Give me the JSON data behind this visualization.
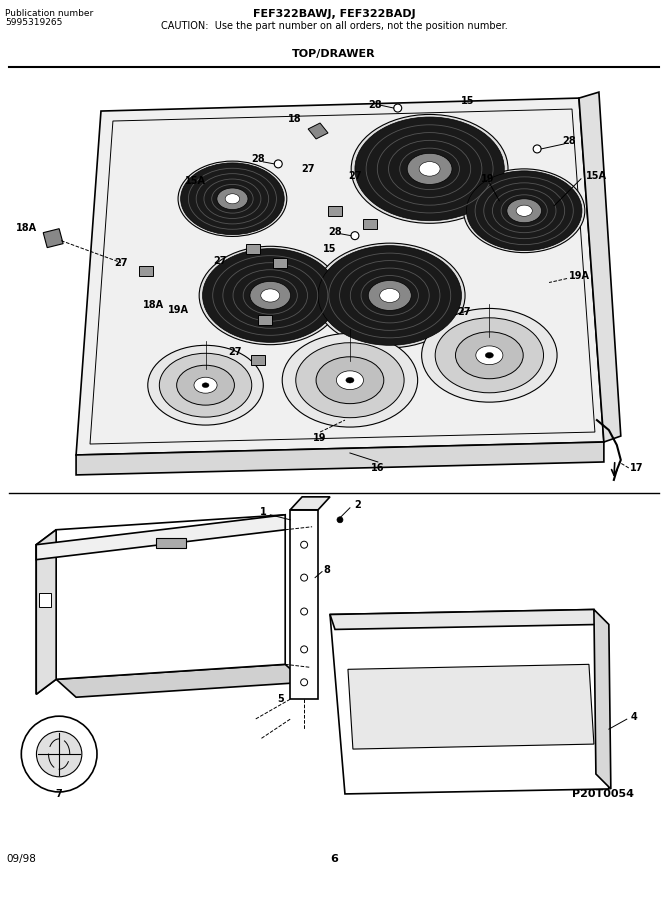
{
  "title_line1": "FEF322BAWJ, FEF322BADJ",
  "title_line2": "CAUTION:  Use the part number on all orders, not the position number.",
  "pub_label": "Publication number",
  "pub_number": "5995319265",
  "section_label": "TOP/DRAWER",
  "bottom_left": "09/98",
  "bottom_center": "6",
  "bottom_right": "P20T0054",
  "bg_color": "#ffffff",
  "fig_width": 6.68,
  "fig_height": 9.0,
  "dpi": 100
}
